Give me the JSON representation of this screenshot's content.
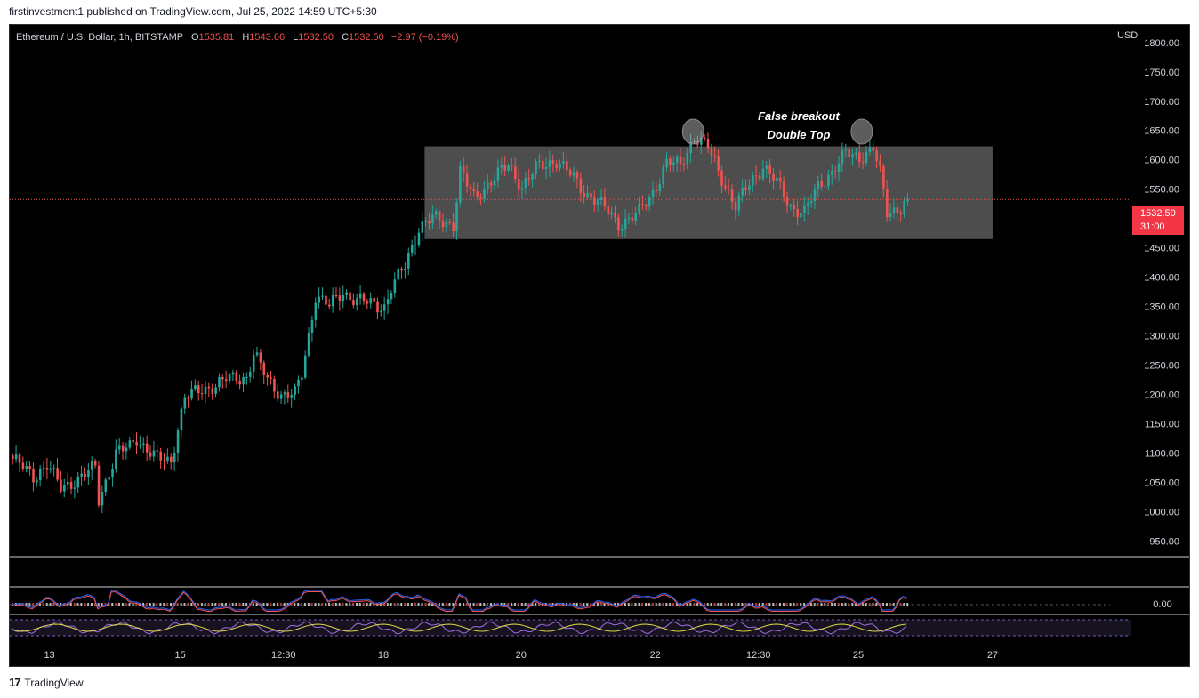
{
  "header": {
    "publish_text": "firstinvestment1 published on TradingView.com, Jul 25, 2022 14:59 UTC+5:30"
  },
  "legend": {
    "symbol": "Ethereum / U.S. Dollar, 1h, BITSTAMP",
    "o_label": "O",
    "o_value": "1535.81",
    "h_label": "H",
    "h_value": "1543.66",
    "l_label": "L",
    "l_value": "1532.50",
    "c_label": "C",
    "c_value": "1532.50",
    "change": "−2.97 (−0.19%)"
  },
  "axis": {
    "currency": "USD"
  },
  "price_badge": {
    "price": "1532.50",
    "countdown": "31:00"
  },
  "annotation": {
    "line1": "False breakout",
    "line2": "Double Top"
  },
  "indicator": {
    "zero_label": "0.00"
  },
  "footer": {
    "brand": "TradingView"
  },
  "colors": {
    "up": "#26a69a",
    "down": "#ef5350",
    "background": "#000000",
    "zone": "#5a5a5a",
    "badge": "#f23645",
    "macd_line": "#2962ff",
    "signal_line": "#ef5350"
  },
  "chart_data": {
    "type": "candlestick",
    "symbol": "ETHUSD",
    "interval": "1h",
    "y_ticks": [
      1800,
      1750,
      1700,
      1650,
      1600,
      1550,
      1450,
      1400,
      1350,
      1300,
      1250,
      1200,
      1150,
      1100,
      1050,
      1000,
      950
    ],
    "y_tick_labels": [
      "1800.00",
      "1750.00",
      "1700.00",
      "1650.00",
      "1600.00",
      "1550.00",
      "1450.00",
      "1400.00",
      "1350.00",
      "1300.00",
      "1250.00",
      "1200.00",
      "1150.00",
      "1100.00",
      "1050.00",
      "1000.00",
      "950.00"
    ],
    "ylim": [
      925,
      1830
    ],
    "x_tick_labels": [
      "13",
      "15",
      "12:30",
      "18",
      "20",
      "22",
      "12:30",
      "25",
      "27"
    ],
    "x_tick_bars": [
      11,
      49,
      79,
      108,
      148,
      187,
      217,
      246,
      285
    ],
    "last_price": 1532.5,
    "range_zone": {
      "low": 1465,
      "high": 1623,
      "start_bar": 120,
      "end_bar": 285
    },
    "highlighted_tops_bar": [
      198,
      247
    ],
    "price_path": [
      [
        0,
        1090
      ],
      [
        6,
        1060
      ],
      [
        10,
        1080
      ],
      [
        14,
        1040
      ],
      [
        20,
        1060
      ],
      [
        24,
        1075
      ],
      [
        25,
        1020
      ],
      [
        30,
        1100
      ],
      [
        34,
        1110
      ],
      [
        36,
        1125
      ],
      [
        42,
        1090
      ],
      [
        46,
        1085
      ],
      [
        48,
        1145
      ],
      [
        50,
        1195
      ],
      [
        56,
        1210
      ],
      [
        62,
        1225
      ],
      [
        68,
        1230
      ],
      [
        70,
        1270
      ],
      [
        74,
        1225
      ],
      [
        78,
        1200
      ],
      [
        82,
        1200
      ],
      [
        84,
        1235
      ],
      [
        86,
        1300
      ],
      [
        88,
        1370
      ],
      [
        92,
        1350
      ],
      [
        96,
        1375
      ],
      [
        100,
        1360
      ],
      [
        104,
        1355
      ],
      [
        108,
        1350
      ],
      [
        110,
        1380
      ],
      [
        114,
        1420
      ],
      [
        118,
        1485
      ],
      [
        122,
        1500
      ],
      [
        128,
        1490
      ],
      [
        130,
        1580
      ],
      [
        134,
        1535
      ],
      [
        140,
        1570
      ],
      [
        144,
        1590
      ],
      [
        148,
        1555
      ],
      [
        152,
        1585
      ],
      [
        158,
        1600
      ],
      [
        162,
        1575
      ],
      [
        166,
        1545
      ],
      [
        170,
        1530
      ],
      [
        176,
        1490
      ],
      [
        182,
        1510
      ],
      [
        186,
        1545
      ],
      [
        190,
        1595
      ],
      [
        194,
        1590
      ],
      [
        198,
        1640
      ],
      [
        202,
        1620
      ],
      [
        206,
        1570
      ],
      [
        210,
        1520
      ],
      [
        214,
        1560
      ],
      [
        218,
        1590
      ],
      [
        222,
        1560
      ],
      [
        226,
        1520
      ],
      [
        230,
        1510
      ],
      [
        234,
        1555
      ],
      [
        238,
        1580
      ],
      [
        242,
        1610
      ],
      [
        246,
        1605
      ],
      [
        250,
        1620
      ],
      [
        252,
        1575
      ],
      [
        254,
        1510
      ],
      [
        258,
        1520
      ],
      [
        260,
        1532.5
      ]
    ]
  }
}
